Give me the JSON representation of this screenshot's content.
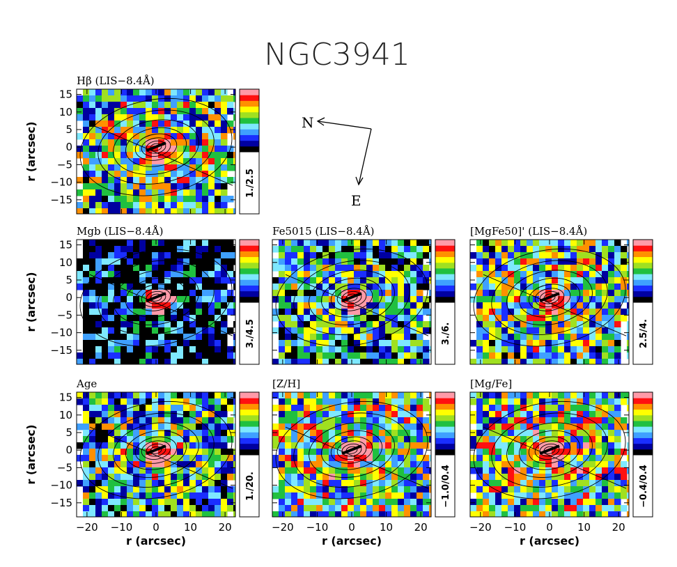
{
  "figure": {
    "title": "NGC3941",
    "panels": [
      {
        "key": "hbeta",
        "label": "Hβ (LIS−8.4Å)",
        "range": "1./2.5",
        "level": 0.5,
        "show_xticks": false,
        "show_ylabel": true
      },
      {
        "key": "mgb",
        "label": "Mgb (LIS−8.4Å)",
        "range": "3./4.5",
        "level": 0.15,
        "show_xticks": false,
        "show_ylabel": true
      },
      {
        "key": "fe5015",
        "label": "Fe5015 (LIS−8.4Å)",
        "range": "3./6.",
        "level": 0.4,
        "show_xticks": false,
        "show_ylabel": false
      },
      {
        "key": "mgfe50",
        "label": "[MgFe50]' (LIS−8.4Å)",
        "range": "2.5/4.",
        "level": 0.5,
        "show_xticks": false,
        "show_ylabel": false
      },
      {
        "key": "age",
        "label": "Age",
        "range": "1./20.",
        "level": 0.45,
        "show_xticks": true,
        "show_ylabel": true
      },
      {
        "key": "zh",
        "label": "[Z/H]",
        "range": "−1.0/0.4",
        "level": 0.55,
        "show_xticks": true,
        "show_ylabel": false
      },
      {
        "key": "mgfe",
        "label": "[Mg/Fe]",
        "range": "−0.4/0.4",
        "level": 0.55,
        "show_xticks": true,
        "show_ylabel": false
      }
    ],
    "axes": {
      "xlabel": "r (arcsec)",
      "ylabel": "r (arcsec)",
      "xticks": [
        "−20",
        "−10",
        "0",
        "10",
        "20"
      ],
      "yticks": [
        "15",
        "10",
        "5",
        "0",
        "−5",
        "−10",
        "−15"
      ],
      "xlim": [
        -23,
        23
      ],
      "ylim": [
        -19,
        16.5
      ]
    },
    "compass": {
      "north": "N",
      "east": "E"
    },
    "colormap": [
      "#000000",
      "#0000a0",
      "#1a2eff",
      "#3fa0ff",
      "#7ee8ff",
      "#20c040",
      "#a0e020",
      "#ffff00",
      "#ff9000",
      "#ff1010",
      "#ff9aa8"
    ]
  }
}
